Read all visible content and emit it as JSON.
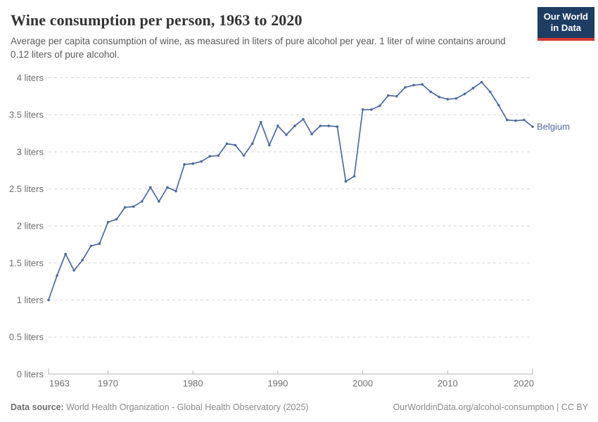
{
  "header": {
    "title": "Wine consumption per person, 1963 to 2020",
    "subtitle": "Average per capita consumption of wine, as measured in liters of pure alcohol per year. 1 liter of wine contains around 0.12 liters of pure alcohol.",
    "logo": {
      "line1": "Our World",
      "line2": "in Data"
    }
  },
  "chart_data": {
    "type": "line",
    "title": "Wine consumption per person, 1963 to 2020",
    "xlabel": "",
    "ylabel": "liters of pure alcohol per year",
    "ylim": [
      0,
      4
    ],
    "x_start": 1963,
    "x_end": 2020,
    "grid": "horizontal-dashed",
    "legend_position": "end-of-line-label",
    "x_ticks": [
      1963,
      1970,
      1980,
      1990,
      2000,
      2010,
      2020
    ],
    "y_ticks": [
      {
        "value": 0,
        "label": "0 liters"
      },
      {
        "value": 0.5,
        "label": "0.5 liters"
      },
      {
        "value": 1,
        "label": "1 liters"
      },
      {
        "value": 1.5,
        "label": "1.5 liters"
      },
      {
        "value": 2,
        "label": "2 liters"
      },
      {
        "value": 2.5,
        "label": "2.5 liters"
      },
      {
        "value": 3,
        "label": "3 liters"
      },
      {
        "value": 3.5,
        "label": "3.5 liters"
      },
      {
        "value": 4,
        "label": "4 liters"
      }
    ],
    "years": [
      1963,
      1964,
      1965,
      1966,
      1967,
      1968,
      1969,
      1970,
      1971,
      1972,
      1973,
      1974,
      1975,
      1976,
      1977,
      1978,
      1979,
      1980,
      1981,
      1982,
      1983,
      1984,
      1985,
      1986,
      1987,
      1988,
      1989,
      1990,
      1991,
      1992,
      1993,
      1994,
      1995,
      1996,
      1997,
      1998,
      1999,
      2000,
      2001,
      2002,
      2003,
      2004,
      2005,
      2006,
      2007,
      2008,
      2009,
      2010,
      2011,
      2012,
      2013,
      2014,
      2015,
      2016,
      2017,
      2018,
      2019,
      2020
    ],
    "series": [
      {
        "name": "Belgium",
        "color": "#4c6aa2",
        "values": [
          1.0,
          1.33,
          1.62,
          1.4,
          1.54,
          1.73,
          1.76,
          2.05,
          2.09,
          2.25,
          2.26,
          2.33,
          2.52,
          2.33,
          2.52,
          2.47,
          2.83,
          2.84,
          2.87,
          2.94,
          2.95,
          3.11,
          3.09,
          2.95,
          3.11,
          3.4,
          3.09,
          3.35,
          3.23,
          3.35,
          3.44,
          3.24,
          3.35,
          3.35,
          3.34,
          2.6,
          2.67,
          3.57,
          3.57,
          3.62,
          3.76,
          3.75,
          3.87,
          3.9,
          3.91,
          3.81,
          3.74,
          3.71,
          3.72,
          3.78,
          3.86,
          3.94,
          3.81,
          3.63,
          3.43,
          3.42,
          3.43,
          3.34
        ]
      }
    ]
  },
  "footer": {
    "source_label": "Data source:",
    "source_text": " World Health Organization - Global Health Observatory (2025)",
    "credit": "OurWorldinData.org/alcohol-consumption | CC BY"
  },
  "colors": {
    "line": "#4c6aa2",
    "logo_bg": "#1d3d63",
    "logo_red": "#d73a33",
    "grid": "#d5d5d5",
    "axis": "#b3b3b3",
    "tick_label": "#6e6e6e",
    "title": "#333333",
    "subtitle": "#5a5a5a"
  }
}
